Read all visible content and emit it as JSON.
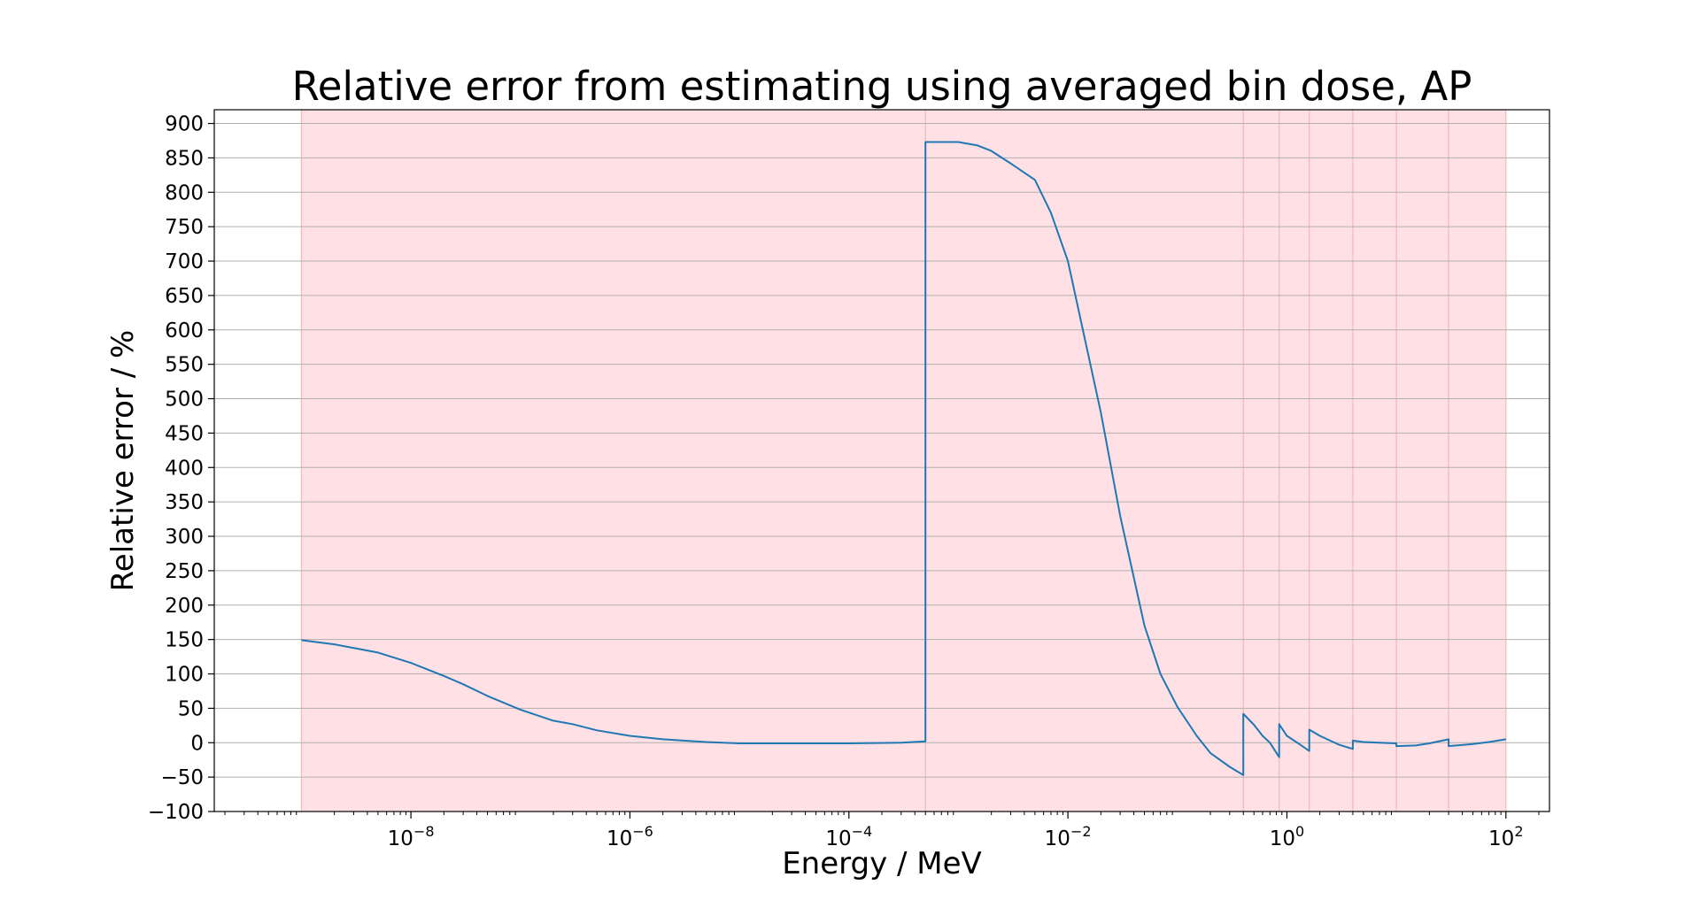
{
  "chart_data": {
    "type": "line",
    "title": "Relative error from estimating using averaged bin dose, AP",
    "xlabel": "Energy / MeV",
    "ylabel": "Relative error / %",
    "xscale": "log",
    "xlim": [
      1.6e-10,
      250.0
    ],
    "ylim": [
      -100,
      920
    ],
    "grid": "horizontal",
    "line_color": "#1f77b4",
    "band_color": "#ffe0e4",
    "band_edge_color": "#f2b8b4",
    "bin_edges": [
      1e-09,
      0.0005,
      0.4,
      0.85,
      1.6,
      4,
      10,
      30,
      100
    ],
    "yticks": [
      -100,
      -50,
      0,
      50,
      100,
      150,
      200,
      250,
      300,
      350,
      400,
      450,
      500,
      550,
      600,
      650,
      700,
      750,
      800,
      850,
      900
    ],
    "ytick_labels": [
      "−100",
      "−50",
      "0",
      "50",
      "100",
      "150",
      "200",
      "250",
      "300",
      "350",
      "400",
      "450",
      "500",
      "550",
      "600",
      "650",
      "700",
      "750",
      "800",
      "850",
      "900"
    ],
    "xticks": [
      {
        "value": 1e-08,
        "base": "10",
        "exp": "−8"
      },
      {
        "value": 1e-06,
        "base": "10",
        "exp": "−6"
      },
      {
        "value": 0.0001,
        "base": "10",
        "exp": "−4"
      },
      {
        "value": 0.01,
        "base": "10",
        "exp": "−2"
      },
      {
        "value": 1,
        "base": "10",
        "exp": "0"
      },
      {
        "value": 100,
        "base": "10",
        "exp": "2"
      }
    ],
    "series": [
      {
        "x": [
          1e-09,
          2e-09,
          5e-09,
          1e-08,
          2e-08,
          3e-08,
          5e-08,
          1e-07,
          2e-07,
          3e-07,
          5e-07,
          1e-06,
          2e-06,
          5e-06,
          1e-05,
          3e-05,
          0.0001,
          0.0003,
          0.0005,
          0.0005,
          0.001,
          0.0015,
          0.002,
          0.003,
          0.005,
          0.007,
          0.01,
          0.02,
          0.03,
          0.05,
          0.07,
          0.1,
          0.15,
          0.2,
          0.3,
          0.4,
          0.4,
          0.5,
          0.6,
          0.7,
          0.85,
          0.85,
          1,
          1.3,
          1.6,
          1.6,
          2,
          3,
          4,
          4,
          5,
          7,
          10,
          10,
          15,
          20,
          30,
          30,
          50,
          70,
          100
        ],
        "y": [
          149,
          143,
          131,
          116,
          97,
          85,
          68,
          48,
          32,
          27,
          18,
          10,
          5,
          1,
          -1,
          -1,
          -1,
          0,
          2,
          873,
          873,
          868,
          860,
          842,
          818,
          770,
          700,
          480,
          330,
          170,
          100,
          52,
          10,
          -15,
          -35,
          -47,
          42,
          26,
          10,
          0,
          -21,
          27,
          10,
          -2,
          -12,
          19,
          10,
          -3,
          -9,
          3,
          1,
          0,
          -1,
          -5,
          -4,
          -1,
          5,
          -5,
          -2,
          1,
          5
        ]
      }
    ]
  }
}
